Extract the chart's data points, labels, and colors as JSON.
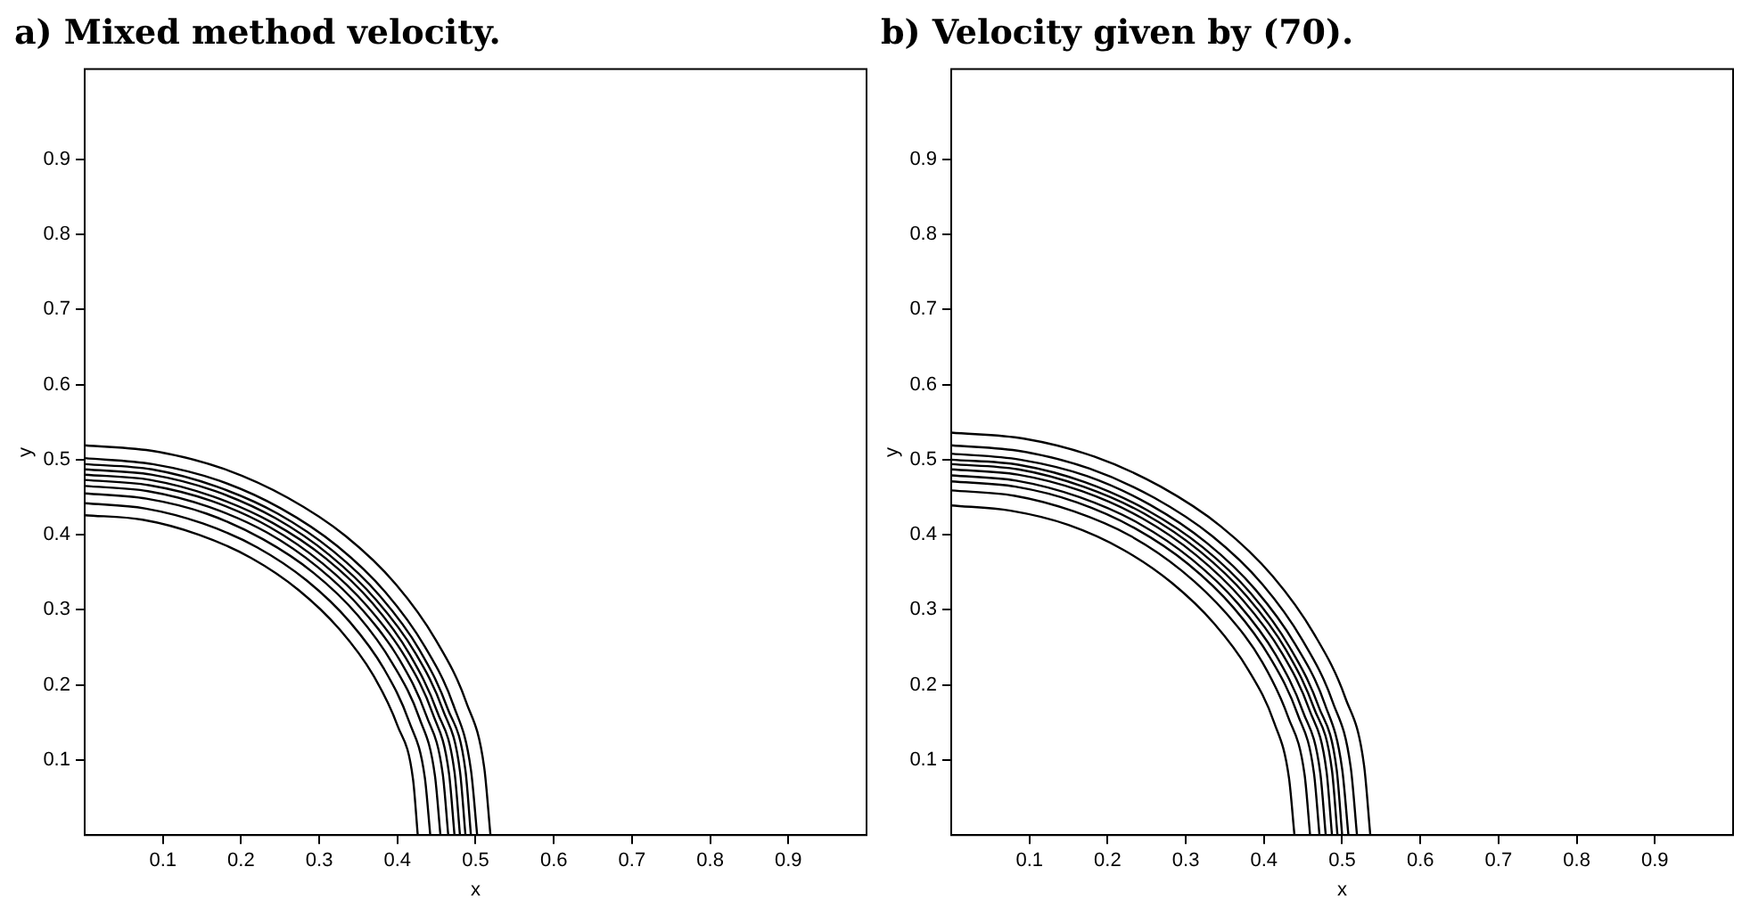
{
  "chart_data": [
    {
      "type": "line",
      "title": "a) Mixed method velocity.",
      "xlabel": "x",
      "ylabel": "y",
      "xlim": [
        0,
        1
      ],
      "ylim": [
        0,
        1.02
      ],
      "xticks": [
        0.1,
        0.2,
        0.3,
        0.4,
        0.5,
        0.6,
        0.7,
        0.8,
        0.9
      ],
      "yticks": [
        0.1,
        0.2,
        0.3,
        0.4,
        0.5,
        0.6,
        0.7,
        0.8,
        0.9
      ],
      "grid": false,
      "legend": false,
      "marker": "none",
      "line_style": "solid",
      "series": [
        {
          "color": "#000000",
          "x": [
            0,
            0.09,
            0.177,
            0.26,
            0.334,
            0.398,
            0.449,
            0.488,
            0.511,
            0.519
          ],
          "values": [
            0.519,
            0.511,
            0.488,
            0.449,
            0.398,
            0.334,
            0.26,
            0.177,
            0.09,
            0
          ]
        },
        {
          "color": "#000000",
          "x": [
            0,
            0.087,
            0.172,
            0.251,
            0.323,
            0.385,
            0.435,
            0.472,
            0.494,
            0.502
          ],
          "values": [
            0.502,
            0.494,
            0.472,
            0.435,
            0.385,
            0.323,
            0.251,
            0.172,
            0.087,
            0
          ]
        },
        {
          "color": "#000000",
          "x": [
            0,
            0.086,
            0.169,
            0.247,
            0.318,
            0.378,
            0.428,
            0.464,
            0.487,
            0.494
          ],
          "values": [
            0.494,
            0.487,
            0.464,
            0.428,
            0.378,
            0.318,
            0.247,
            0.169,
            0.086,
            0
          ]
        },
        {
          "color": "#000000",
          "x": [
            0,
            0.085,
            0.167,
            0.244,
            0.313,
            0.373,
            0.422,
            0.458,
            0.48,
            0.487
          ],
          "values": [
            0.487,
            0.48,
            0.458,
            0.422,
            0.373,
            0.313,
            0.244,
            0.167,
            0.085,
            0
          ]
        },
        {
          "color": "#000000",
          "x": [
            0,
            0.084,
            0.164,
            0.24,
            0.309,
            0.368,
            0.416,
            0.451,
            0.473,
            0.48
          ],
          "values": [
            0.48,
            0.473,
            0.451,
            0.416,
            0.368,
            0.309,
            0.24,
            0.164,
            0.084,
            0
          ]
        },
        {
          "color": "#000000",
          "x": [
            0,
            0.082,
            0.162,
            0.237,
            0.304,
            0.362,
            0.41,
            0.445,
            0.466,
            0.473
          ],
          "values": [
            0.473,
            0.466,
            0.445,
            0.41,
            0.362,
            0.304,
            0.237,
            0.162,
            0.082,
            0
          ]
        },
        {
          "color": "#000000",
          "x": [
            0,
            0.081,
            0.159,
            0.233,
            0.299,
            0.356,
            0.403,
            0.437,
            0.458,
            0.465
          ],
          "values": [
            0.465,
            0.458,
            0.437,
            0.403,
            0.356,
            0.299,
            0.233,
            0.159,
            0.081,
            0
          ]
        },
        {
          "color": "#000000",
          "x": [
            0,
            0.079,
            0.156,
            0.228,
            0.293,
            0.349,
            0.394,
            0.428,
            0.448,
            0.455
          ],
          "values": [
            0.455,
            0.448,
            0.428,
            0.394,
            0.349,
            0.293,
            0.228,
            0.156,
            0.079,
            0
          ]
        },
        {
          "color": "#000000",
          "x": [
            0,
            0.077,
            0.151,
            0.221,
            0.284,
            0.339,
            0.383,
            0.415,
            0.435,
            0.442
          ],
          "values": [
            0.442,
            0.435,
            0.415,
            0.383,
            0.339,
            0.284,
            0.221,
            0.151,
            0.077,
            0
          ]
        },
        {
          "color": "#000000",
          "x": [
            0,
            0.074,
            0.146,
            0.213,
            0.274,
            0.326,
            0.369,
            0.4,
            0.42,
            0.426
          ],
          "values": [
            0.426,
            0.42,
            0.4,
            0.369,
            0.326,
            0.274,
            0.213,
            0.146,
            0.074,
            0
          ]
        }
      ]
    },
    {
      "type": "line",
      "title": "b) Velocity given by (70).",
      "xlabel": "x",
      "ylabel": "y",
      "xlim": [
        0,
        1
      ],
      "ylim": [
        0,
        1.02
      ],
      "xticks": [
        0.1,
        0.2,
        0.3,
        0.4,
        0.5,
        0.6,
        0.7,
        0.8,
        0.9
      ],
      "yticks": [
        0.1,
        0.2,
        0.3,
        0.4,
        0.5,
        0.6,
        0.7,
        0.8,
        0.9
      ],
      "grid": false,
      "legend": false,
      "marker": "none",
      "line_style": "solid",
      "series": [
        {
          "color": "#000000",
          "x": [
            0,
            0.093,
            0.183,
            0.268,
            0.345,
            0.411,
            0.464,
            0.504,
            0.528,
            0.536
          ],
          "values": [
            0.536,
            0.528,
            0.504,
            0.464,
            0.411,
            0.345,
            0.268,
            0.183,
            0.093,
            0
          ]
        },
        {
          "color": "#000000",
          "x": [
            0,
            0.09,
            0.177,
            0.26,
            0.334,
            0.398,
            0.449,
            0.488,
            0.511,
            0.519
          ],
          "values": [
            0.519,
            0.511,
            0.488,
            0.449,
            0.398,
            0.334,
            0.26,
            0.177,
            0.09,
            0
          ]
        },
        {
          "color": "#000000",
          "x": [
            0,
            0.088,
            0.174,
            0.254,
            0.327,
            0.389,
            0.44,
            0.478,
            0.5,
            0.508
          ],
          "values": [
            0.508,
            0.5,
            0.478,
            0.44,
            0.389,
            0.327,
            0.254,
            0.174,
            0.088,
            0
          ]
        },
        {
          "color": "#000000",
          "x": [
            0,
            0.087,
            0.171,
            0.25,
            0.322,
            0.383,
            0.433,
            0.47,
            0.493,
            0.5
          ],
          "values": [
            0.5,
            0.493,
            0.47,
            0.433,
            0.383,
            0.322,
            0.25,
            0.171,
            0.087,
            0
          ]
        },
        {
          "color": "#000000",
          "x": [
            0,
            0.086,
            0.169,
            0.247,
            0.318,
            0.378,
            0.428,
            0.464,
            0.487,
            0.494
          ],
          "values": [
            0.494,
            0.487,
            0.464,
            0.428,
            0.378,
            0.318,
            0.247,
            0.169,
            0.086,
            0
          ]
        },
        {
          "color": "#000000",
          "x": [
            0,
            0.085,
            0.167,
            0.244,
            0.313,
            0.373,
            0.422,
            0.458,
            0.48,
            0.487
          ],
          "values": [
            0.487,
            0.48,
            0.458,
            0.422,
            0.373,
            0.313,
            0.244,
            0.167,
            0.085,
            0
          ]
        },
        {
          "color": "#000000",
          "x": [
            0,
            0.083,
            0.164,
            0.24,
            0.308,
            0.367,
            0.415,
            0.45,
            0.472,
            0.479
          ],
          "values": [
            0.479,
            0.472,
            0.45,
            0.415,
            0.367,
            0.308,
            0.24,
            0.164,
            0.083,
            0
          ]
        },
        {
          "color": "#000000",
          "x": [
            0,
            0.082,
            0.161,
            0.236,
            0.303,
            0.361,
            0.408,
            0.443,
            0.464,
            0.471
          ],
          "values": [
            0.471,
            0.464,
            0.443,
            0.408,
            0.361,
            0.303,
            0.236,
            0.161,
            0.082,
            0
          ]
        },
        {
          "color": "#000000",
          "x": [
            0,
            0.08,
            0.157,
            0.23,
            0.295,
            0.352,
            0.398,
            0.431,
            0.452,
            0.459
          ],
          "values": [
            0.459,
            0.452,
            0.431,
            0.398,
            0.352,
            0.295,
            0.23,
            0.157,
            0.08,
            0
          ]
        },
        {
          "color": "#000000",
          "x": [
            0,
            0.076,
            0.15,
            0.22,
            0.282,
            0.336,
            0.38,
            0.413,
            0.432,
            0.439
          ],
          "values": [
            0.439,
            0.432,
            0.413,
            0.38,
            0.336,
            0.282,
            0.22,
            0.15,
            0.076,
            0
          ]
        }
      ]
    }
  ]
}
